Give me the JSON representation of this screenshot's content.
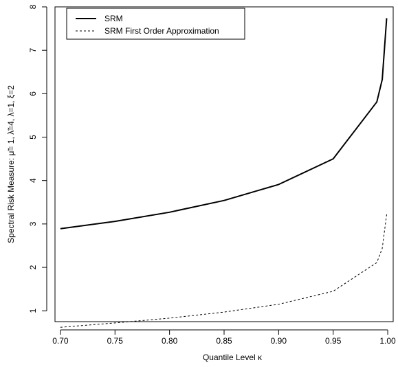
{
  "chart_data": {
    "type": "line",
    "title": "",
    "xlabel": "Quantile Level   κ",
    "ylabel": "Spectral Risk Measure:   μ̃= 1,  λ̃=4,  λ=1,  ξ=2",
    "xlim": [
      0.695,
      1.005
    ],
    "ylim": [
      0.75,
      8.0
    ],
    "x_ticks": [
      "0.70",
      "0.75",
      "0.80",
      "0.85",
      "0.90",
      "0.95",
      "1.00"
    ],
    "y_ticks": [
      "1",
      "2",
      "3",
      "4",
      "5",
      "6",
      "7",
      "8"
    ],
    "grid": false,
    "legend_position": "top-left",
    "series": [
      {
        "name": "SRM",
        "line_style": "solid",
        "color": "#000000",
        "x": [
          0.7,
          0.75,
          0.8,
          0.85,
          0.9,
          0.95,
          0.99,
          0.995,
          0.999
        ],
        "y": [
          2.89,
          3.06,
          3.27,
          3.54,
          3.91,
          4.5,
          5.81,
          6.33,
          7.74
        ]
      },
      {
        "name": "SRM First Order Approximation",
        "line_style": "dashed",
        "color": "#000000",
        "x": [
          0.7,
          0.75,
          0.8,
          0.85,
          0.9,
          0.95,
          0.99,
          0.995,
          0.999
        ],
        "y": [
          0.62,
          0.72,
          0.83,
          0.97,
          1.15,
          1.45,
          2.11,
          2.44,
          3.22
        ]
      }
    ]
  }
}
